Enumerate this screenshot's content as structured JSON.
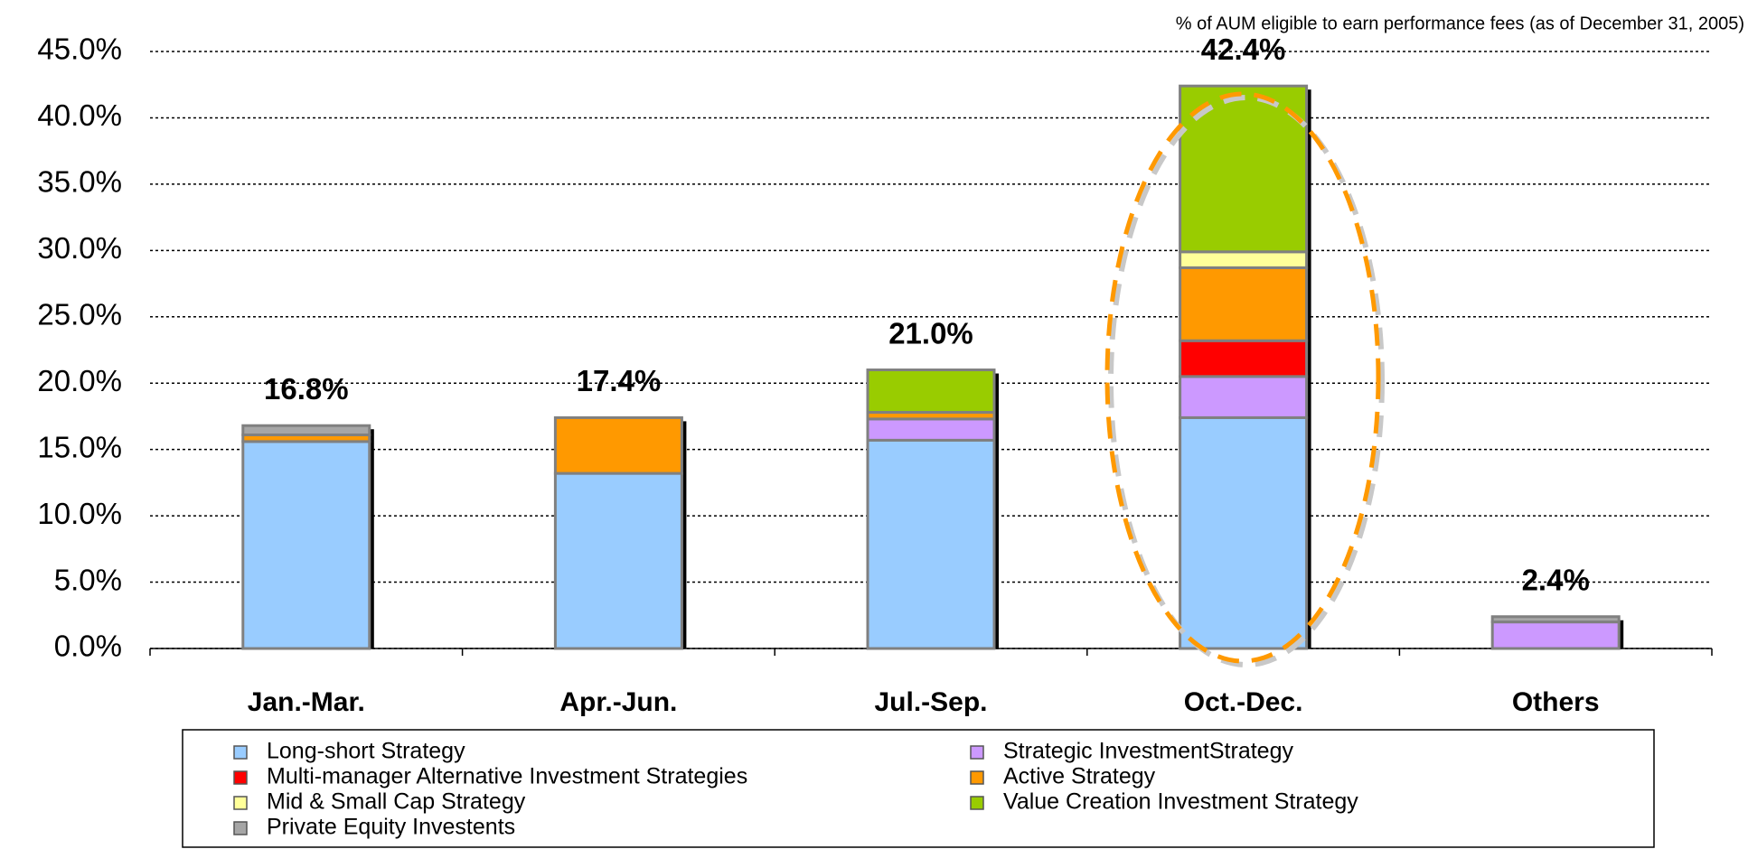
{
  "chart_data": {
    "type": "stacked_bar",
    "subtitle": "% of AUM eligible to earn performance fees (as of December 31, 2005)",
    "categories": [
      "Jan.-Mar.",
      "Apr.-Jun.",
      "Jul.-Sep.",
      "Oct.-Dec.",
      "Others"
    ],
    "series": [
      {
        "name": "Long-short Strategy",
        "color": "#99ccff",
        "values": [
          15.6,
          13.2,
          15.7,
          17.4,
          0
        ]
      },
      {
        "name": "Strategic InvestmentStrategy",
        "color": "#cc99ff",
        "values": [
          0,
          0,
          1.6,
          3.1,
          2.0
        ]
      },
      {
        "name": "Multi-manager Alternative Investment Strategies",
        "color": "#ff0000",
        "values": [
          0,
          0,
          0,
          2.7,
          0
        ]
      },
      {
        "name": "Active Strategy",
        "color": "#ff9900",
        "values": [
          0.5,
          4.2,
          0.5,
          5.5,
          0
        ]
      },
      {
        "name": "Mid & Small Cap Strategy",
        "color": "#ffff99",
        "values": [
          0,
          0,
          0,
          1.2,
          0
        ]
      },
      {
        "name": "Value Creation Investment Strategy",
        "color": "#99cc00",
        "values": [
          0,
          0,
          3.2,
          12.5,
          0
        ]
      },
      {
        "name": "Private Equity Investents",
        "color": "#a6a6a6",
        "values": [
          0.7,
          0,
          0,
          0,
          0.4
        ]
      }
    ],
    "totals": [
      16.8,
      17.4,
      21.0,
      42.4,
      2.4
    ],
    "total_labels": [
      "16.8%",
      "17.4%",
      "21.0%",
      "42.4%",
      "2.4%"
    ],
    "ylim": [
      0,
      45
    ],
    "yticks": [
      {
        "value": 0,
        "label": "0.0%"
      },
      {
        "value": 5,
        "label": "5.0%"
      },
      {
        "value": 10,
        "label": "10.0%"
      },
      {
        "value": 15,
        "label": "15.0%"
      },
      {
        "value": 20,
        "label": "20.0%"
      },
      {
        "value": 25,
        "label": "25.0%"
      },
      {
        "value": 30,
        "label": "30.0%"
      },
      {
        "value": 35,
        "label": "35.0%"
      },
      {
        "value": 40,
        "label": "40.0%"
      },
      {
        "value": 45,
        "label": "45.0%"
      }
    ],
    "grid": true
  }
}
